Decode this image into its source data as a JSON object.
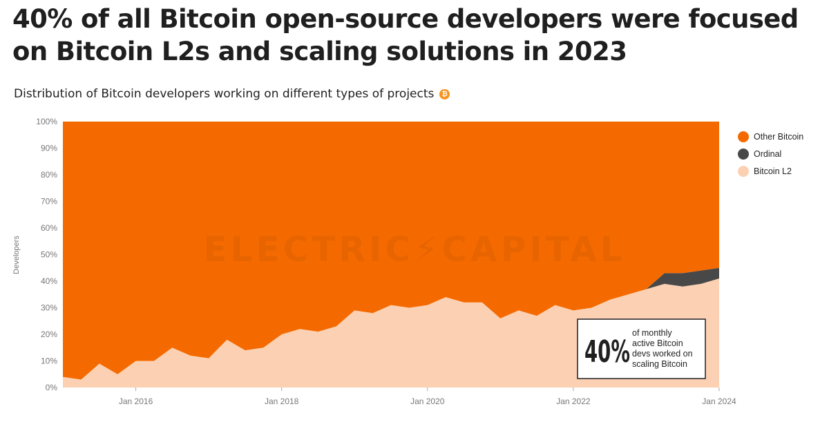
{
  "headline": "40% of all Bitcoin open-source developers were focused on Bitcoin L2s and scaling solutions in  2023",
  "subtitle": "Distribution of Bitcoin developers working on different types of projects",
  "badge_icon": "bitcoin-icon",
  "watermark": "ELECTRIC⚡CAPITAL",
  "callout": {
    "big": "40%",
    "line1": "of monthly",
    "line2": "active Bitcoin",
    "line3": "devs worked on",
    "line4": "scaling Bitcoin"
  },
  "colors": {
    "other": "#f46a00",
    "ordinal": "#484848",
    "l2": "#fcd1b3",
    "text": "#1f1f1f",
    "axis_text": "#777777"
  },
  "chart_data": {
    "type": "area",
    "stacked": true,
    "percent": true,
    "ylabel": "Developers",
    "ylim": [
      0,
      100
    ],
    "yticks": [
      "0%",
      "10%",
      "20%",
      "30%",
      "40%",
      "50%",
      "60%",
      "70%",
      "80%",
      "90%",
      "100%"
    ],
    "xticks": [
      "Jan 2016",
      "Jan 2018",
      "Jan 2020",
      "Jan 2022",
      "Jan 2024"
    ],
    "xlim": [
      "2015-01",
      "2024-01"
    ],
    "legend_position": "right",
    "legend": [
      "Other Bitcoin",
      "Ordinal",
      "Bitcoin L2"
    ],
    "x": [
      "2015-01",
      "2015-04",
      "2015-07",
      "2015-10",
      "2016-01",
      "2016-04",
      "2016-07",
      "2016-10",
      "2017-01",
      "2017-04",
      "2017-07",
      "2017-10",
      "2018-01",
      "2018-04",
      "2018-07",
      "2018-10",
      "2019-01",
      "2019-04",
      "2019-07",
      "2019-10",
      "2020-01",
      "2020-04",
      "2020-07",
      "2020-10",
      "2021-01",
      "2021-04",
      "2021-07",
      "2021-10",
      "2022-01",
      "2022-04",
      "2022-07",
      "2022-10",
      "2023-01",
      "2023-04",
      "2023-07",
      "2023-10",
      "2024-01"
    ],
    "series": [
      {
        "name": "Bitcoin L2",
        "values": [
          4,
          3,
          9,
          5,
          10,
          10,
          15,
          12,
          11,
          18,
          14,
          15,
          20,
          22,
          21,
          23,
          29,
          28,
          31,
          30,
          31,
          34,
          32,
          32,
          26,
          29,
          27,
          31,
          29,
          30,
          33,
          35,
          37,
          39,
          38,
          39,
          41
        ]
      },
      {
        "name": "Ordinal",
        "values": [
          0,
          0,
          0,
          0,
          0,
          0,
          0,
          0,
          0,
          0,
          0,
          0,
          0,
          0,
          0,
          0,
          0,
          0,
          0,
          0,
          0,
          0,
          0,
          0,
          0,
          0,
          0,
          0,
          0,
          0,
          0,
          0,
          0,
          4,
          5,
          5,
          4
        ]
      },
      {
        "name": "Other Bitcoin",
        "values": [
          96,
          97,
          91,
          95,
          90,
          90,
          85,
          88,
          89,
          82,
          86,
          85,
          80,
          78,
          79,
          77,
          71,
          72,
          69,
          70,
          69,
          66,
          68,
          68,
          74,
          71,
          73,
          69,
          71,
          70,
          67,
          65,
          63,
          57,
          57,
          56,
          55
        ]
      }
    ]
  }
}
